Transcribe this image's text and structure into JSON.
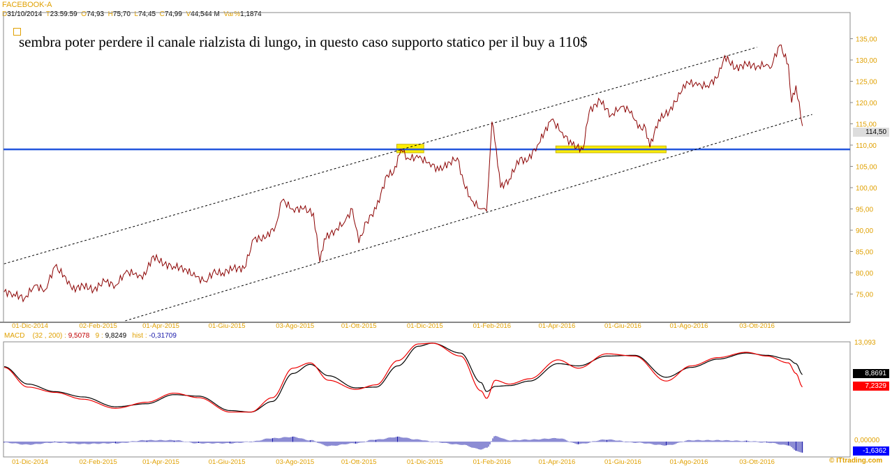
{
  "header": {
    "symbol": "FACEBOOK-A",
    "d_label": "D",
    "date": "31/10/2014",
    "t_label": "T",
    "time": "23:59:59",
    "o_label": "O",
    "open": "74,93",
    "h_label": "H",
    "high": "75,70",
    "l_label": "L",
    "low": "74,45",
    "c_label": "C",
    "close": "74,99",
    "v_label": "V",
    "volume": "44,544 M",
    "var_label": "Var%",
    "var": "1,1874"
  },
  "annotation": "sembra poter perdere il canale rialzista di lungo, in questo caso supporto statico per il buy a 110$",
  "last_price_tag": "114,50",
  "colors": {
    "price": "#8b0000",
    "support": "#2255dd",
    "highlight": "#ffee00",
    "macd": "#ee0000",
    "signal": "#000000",
    "hist": "#1a1aaa",
    "axis_text": "#e0a000"
  },
  "macd_header": {
    "name": "MACD",
    "params": "(32 , 200) :",
    "macd": "9,5078",
    "signal_label": "9 :",
    "signal": "9,8249",
    "hist_label": "hist :",
    "hist": "-0,31709"
  },
  "macd_tags": {
    "signal": "8,8691",
    "macd": "7,2329",
    "hist": "-1,6362",
    "top": "13,093",
    "zero": "0,00000"
  },
  "copyright": "© ITtrading.com",
  "chart_data": [
    {
      "type": "line",
      "grid": false,
      "ylim": [
        70,
        136
      ],
      "yticks": [
        "135,00",
        "130,00",
        "125,00",
        "120,00",
        "115,00",
        "110,00",
        "105,00",
        "100,00",
        "95,00",
        "90,00",
        "85,00",
        "80,00",
        "75,00"
      ],
      "xticks": [
        "01-Dic-2014",
        "02-Feb-2015",
        "01-Apr-2015",
        "01-Giu-2015",
        "03-Ago-2015",
        "01-Ott-2015",
        "01-Dic-2015",
        "01-Feb-2016",
        "01-Apr-2016",
        "01-Giu-2016",
        "01-Ago-2016",
        "03-Ott-2016"
      ],
      "xtick_dates": [
        "2014-12-01",
        "2015-02-02",
        "2015-04-01",
        "2015-06-01",
        "2015-08-03",
        "2015-10-01",
        "2015-12-01",
        "2016-02-01",
        "2016-04-01",
        "2016-06-01",
        "2016-08-01",
        "2016-10-03"
      ],
      "price": [
        [
          "2014-11-07",
          75.5
        ],
        [
          "2014-11-16",
          75
        ],
        [
          "2014-11-26",
          74
        ],
        [
          "2014-12-05",
          77
        ],
        [
          "2014-12-15",
          76
        ],
        [
          "2014-12-24",
          81.5
        ],
        [
          "2015-01-03",
          79
        ],
        [
          "2015-01-09",
          76
        ],
        [
          "2015-01-19",
          77
        ],
        [
          "2015-01-29",
          76
        ],
        [
          "2015-02-08",
          78
        ],
        [
          "2015-02-18",
          77
        ],
        [
          "2015-02-27",
          80
        ],
        [
          "2015-03-09",
          80
        ],
        [
          "2015-03-15",
          78.5
        ],
        [
          "2015-03-25",
          84
        ],
        [
          "2015-04-04",
          82
        ],
        [
          "2015-04-13",
          81.5
        ],
        [
          "2015-04-23",
          81
        ],
        [
          "2015-05-03",
          79
        ],
        [
          "2015-05-12",
          78
        ],
        [
          "2015-05-19",
          80
        ],
        [
          "2015-05-28",
          80
        ],
        [
          "2015-06-07",
          81
        ],
        [
          "2015-06-17",
          81
        ],
        [
          "2015-06-26",
          88
        ],
        [
          "2015-07-06",
          88
        ],
        [
          "2015-07-16",
          91
        ],
        [
          "2015-07-22",
          97
        ],
        [
          "2015-08-01",
          95
        ],
        [
          "2015-08-11",
          95
        ],
        [
          "2015-08-20",
          94
        ],
        [
          "2015-08-26",
          82.5
        ],
        [
          "2015-08-30",
          88
        ],
        [
          "2015-09-09",
          90
        ],
        [
          "2015-09-18",
          92
        ],
        [
          "2015-09-25",
          95
        ],
        [
          "2015-10-01",
          87
        ],
        [
          "2015-10-08",
          92
        ],
        [
          "2015-10-17",
          95
        ],
        [
          "2015-10-27",
          103
        ],
        [
          "2015-11-02",
          103.5
        ],
        [
          "2015-11-09",
          109
        ],
        [
          "2015-11-15",
          107
        ],
        [
          "2015-11-25",
          107
        ],
        [
          "2015-12-05",
          106
        ],
        [
          "2015-12-14",
          104
        ],
        [
          "2015-12-24",
          106
        ],
        [
          "2015-12-31",
          107
        ],
        [
          "2016-01-06",
          101
        ],
        [
          "2016-01-13",
          97
        ],
        [
          "2016-01-22",
          95
        ],
        [
          "2016-01-27",
          94.5
        ],
        [
          "2016-02-01",
          115.5
        ],
        [
          "2016-02-05",
          109
        ],
        [
          "2016-02-09",
          100
        ],
        [
          "2016-02-17",
          102
        ],
        [
          "2016-02-27",
          107
        ],
        [
          "2016-03-04",
          106
        ],
        [
          "2016-03-14",
          110
        ],
        [
          "2016-03-27",
          116
        ],
        [
          "2016-04-06",
          113
        ],
        [
          "2016-04-15",
          110
        ],
        [
          "2016-04-25",
          109
        ],
        [
          "2016-05-01",
          118
        ],
        [
          "2016-05-11",
          120.5
        ],
        [
          "2016-05-21",
          117
        ],
        [
          "2016-05-30",
          119
        ],
        [
          "2016-06-09",
          118
        ],
        [
          "2016-06-15",
          114
        ],
        [
          "2016-06-22",
          114
        ],
        [
          "2016-06-26",
          109.5
        ],
        [
          "2016-07-04",
          116
        ],
        [
          "2016-07-14",
          118
        ],
        [
          "2016-07-24",
          122
        ],
        [
          "2016-07-30",
          125
        ],
        [
          "2016-08-09",
          124
        ],
        [
          "2016-08-18",
          124
        ],
        [
          "2016-08-28",
          126
        ],
        [
          "2016-09-03",
          131
        ],
        [
          "2016-09-13",
          128
        ],
        [
          "2016-09-23",
          129
        ],
        [
          "2016-10-03",
          128.5
        ],
        [
          "2016-10-12",
          129
        ],
        [
          "2016-10-15",
          128
        ],
        [
          "2016-10-24",
          133.5
        ],
        [
          "2016-11-01",
          129
        ],
        [
          "2016-11-04",
          120
        ],
        [
          "2016-11-08",
          124
        ],
        [
          "2016-11-14",
          114.5
        ]
      ],
      "channel_upper": [
        [
          "2014-11-07",
          82.1
        ],
        [
          "2016-10-03",
          133
        ]
      ],
      "channel_lower": [
        [
          "2015-02-27",
          68.7
        ],
        [
          "2016-11-23",
          117.2
        ]
      ],
      "support_level": 109,
      "highlights": [
        [
          [
            "2015-11-05",
            110.2
          ],
          [
            "2015-11-30",
            108.2
          ]
        ],
        [
          [
            "2016-03-31",
            109.8
          ],
          [
            "2016-07-11",
            108.2
          ]
        ]
      ]
    },
    {
      "type": "line",
      "grid": false,
      "ylim": [
        -1.9,
        13.093
      ],
      "series": [
        {
          "name": "MACD",
          "values": [
            [
              "2014-11-07",
              9.8
            ],
            [
              "2014-11-29",
              7.2
            ],
            [
              "2014-12-24",
              6.5
            ],
            [
              "2015-01-19",
              5.6
            ],
            [
              "2015-02-18",
              4.4
            ],
            [
              "2015-03-19",
              5.2
            ],
            [
              "2015-04-13",
              6.4
            ],
            [
              "2015-05-06",
              5.8
            ],
            [
              "2015-06-04",
              3.9
            ],
            [
              "2015-06-23",
              3.9
            ],
            [
              "2015-07-13",
              5.8
            ],
            [
              "2015-08-01",
              9.7
            ],
            [
              "2015-08-17",
              10.4
            ],
            [
              "2015-09-03",
              8.1
            ],
            [
              "2015-09-28",
              6.9
            ],
            [
              "2015-10-17",
              7.5
            ],
            [
              "2015-11-06",
              10.7
            ],
            [
              "2015-11-25",
              12.9
            ],
            [
              "2015-12-08",
              13.0
            ],
            [
              "2016-01-03",
              11.3
            ],
            [
              "2016-01-22",
              6.7
            ],
            [
              "2016-01-27",
              5.7
            ],
            [
              "2016-02-04",
              8.1
            ],
            [
              "2016-02-17",
              7.6
            ],
            [
              "2016-03-07",
              8.3
            ],
            [
              "2016-04-02",
              10.8
            ],
            [
              "2016-04-21",
              9.7
            ],
            [
              "2016-05-17",
              11.6
            ],
            [
              "2016-06-12",
              11.3
            ],
            [
              "2016-07-11",
              8.0
            ],
            [
              "2016-08-03",
              10.0
            ],
            [
              "2016-08-28",
              11.1
            ],
            [
              "2016-09-23",
              11.8
            ],
            [
              "2016-10-12",
              11.3
            ],
            [
              "2016-11-01",
              10.4
            ],
            [
              "2016-11-08",
              9.0
            ],
            [
              "2016-11-14",
              7.23
            ]
          ]
        },
        {
          "name": "9",
          "values": [
            [
              "2014-11-07",
              9.9
            ],
            [
              "2014-11-29",
              7.6
            ],
            [
              "2014-12-24",
              6.6
            ],
            [
              "2015-01-19",
              5.9
            ],
            [
              "2015-02-18",
              4.6
            ],
            [
              "2015-03-19",
              5.0
            ],
            [
              "2015-04-13",
              6.2
            ],
            [
              "2015-05-06",
              6.0
            ],
            [
              "2015-06-04",
              4.1
            ],
            [
              "2015-06-23",
              3.9
            ],
            [
              "2015-07-13",
              5.3
            ],
            [
              "2015-08-01",
              9.0
            ],
            [
              "2015-08-17",
              10.2
            ],
            [
              "2015-09-03",
              8.7
            ],
            [
              "2015-09-28",
              7.1
            ],
            [
              "2015-10-17",
              7.2
            ],
            [
              "2015-11-06",
              10.0
            ],
            [
              "2015-11-25",
              12.6
            ],
            [
              "2015-12-08",
              13.0
            ],
            [
              "2016-01-03",
              11.7
            ],
            [
              "2016-01-22",
              7.8
            ],
            [
              "2016-01-27",
              6.6
            ],
            [
              "2016-02-04",
              7.3
            ],
            [
              "2016-02-17",
              7.4
            ],
            [
              "2016-03-07",
              8.0
            ],
            [
              "2016-04-02",
              10.3
            ],
            [
              "2016-04-21",
              10.0
            ],
            [
              "2016-05-17",
              11.3
            ],
            [
              "2016-06-12",
              11.4
            ],
            [
              "2016-07-11",
              8.5
            ],
            [
              "2016-08-03",
              9.8
            ],
            [
              "2016-08-28",
              10.9
            ],
            [
              "2016-09-23",
              11.7
            ],
            [
              "2016-10-12",
              11.4
            ],
            [
              "2016-11-01",
              10.9
            ],
            [
              "2016-11-08",
              10.3
            ],
            [
              "2016-11-14",
              8.87
            ]
          ]
        }
      ]
    }
  ]
}
